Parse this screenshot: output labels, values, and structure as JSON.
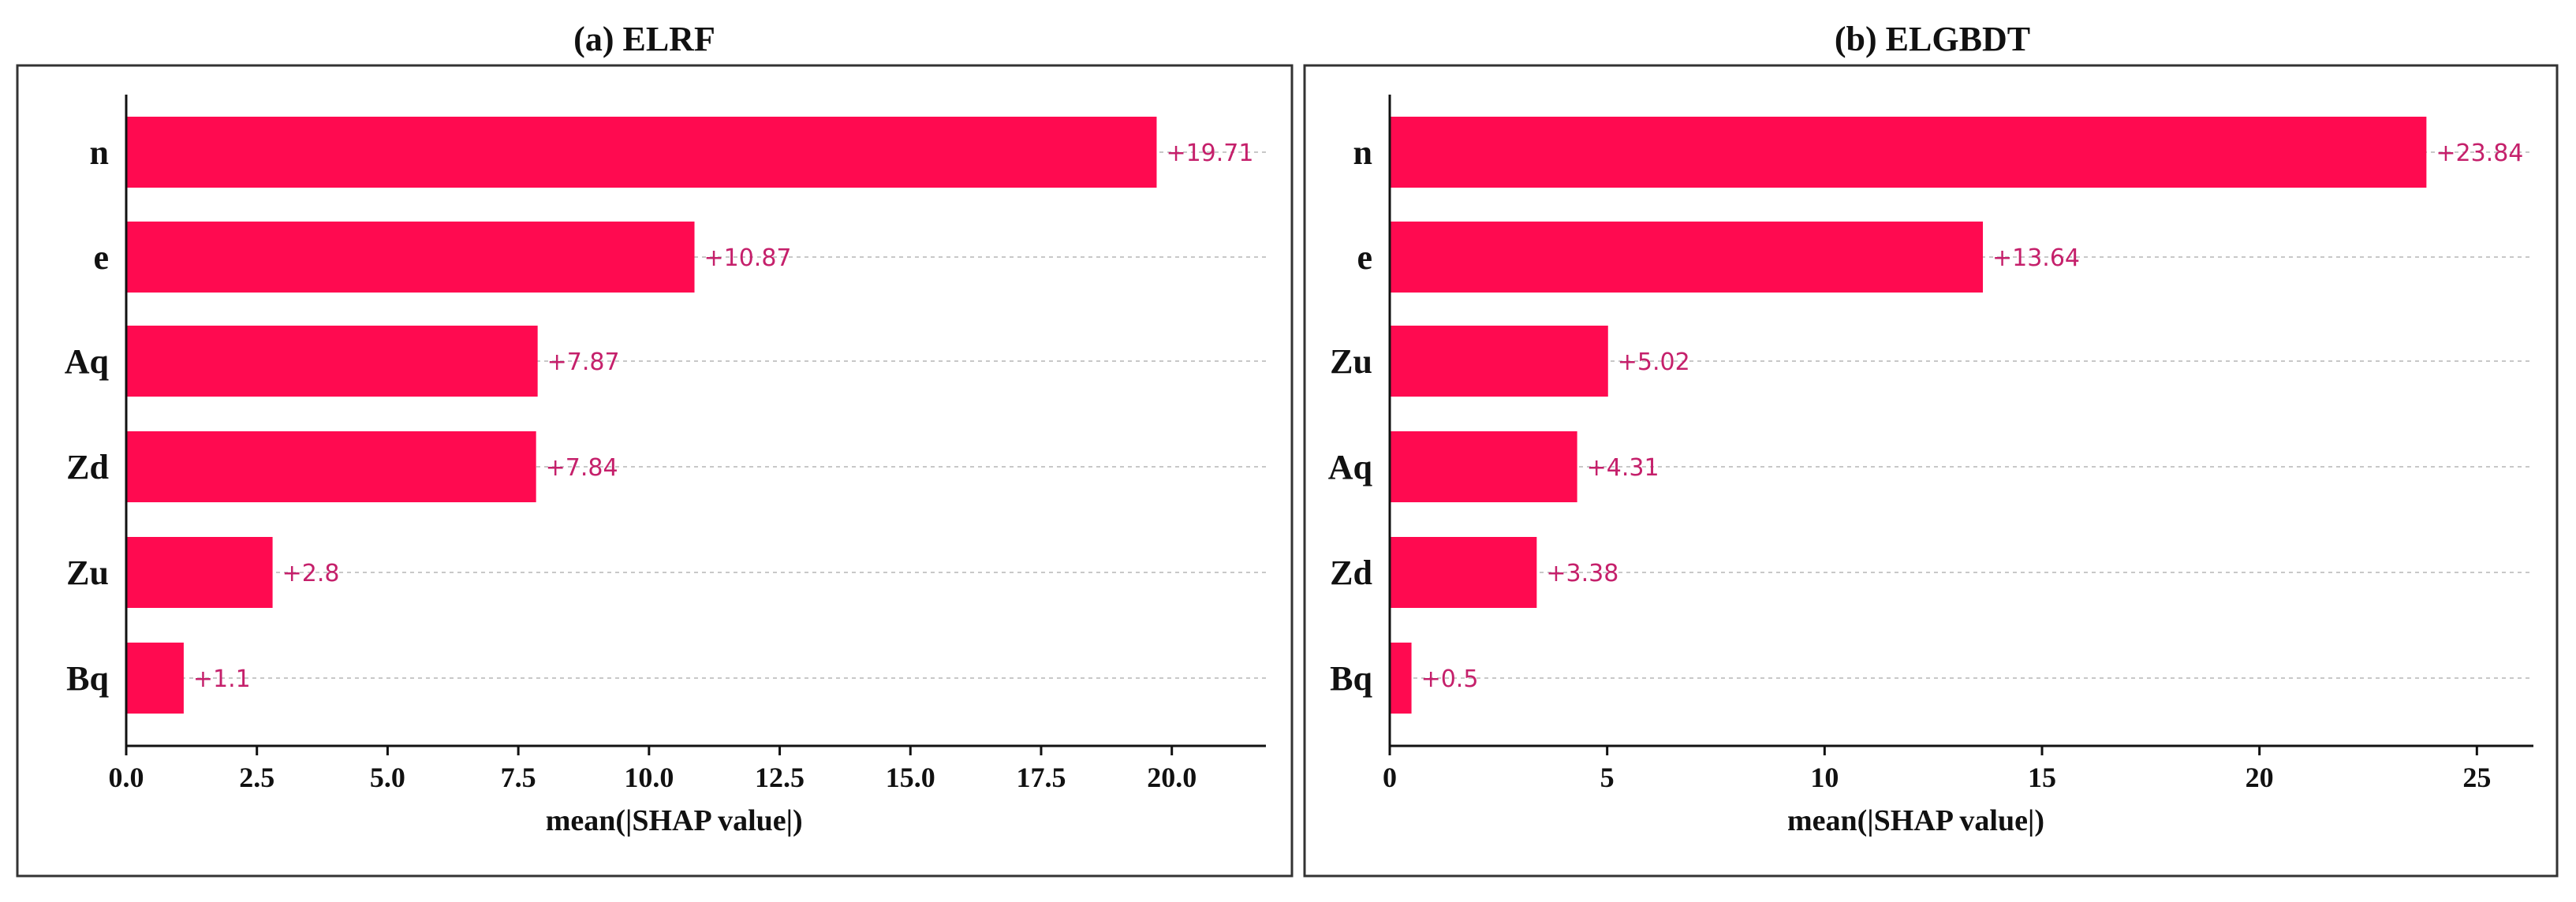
{
  "colors": {
    "bar": "#ff0a50",
    "value_label": "#c5206b"
  },
  "chart_data": [
    {
      "type": "bar",
      "orientation": "horizontal",
      "title": "(a) ELRF",
      "xlabel": "mean(|SHAP value|)",
      "ylabel": "",
      "categories": [
        "n",
        "e",
        "Aq",
        "Zd",
        "Zu",
        "Bq"
      ],
      "values": [
        19.71,
        10.87,
        7.87,
        7.84,
        2.8,
        1.1
      ],
      "value_labels": [
        "+19.71",
        "+10.87",
        "+7.87",
        "+7.84",
        "+2.8",
        "+1.1"
      ],
      "xlim": [
        0,
        21.8
      ],
      "xticks": [
        0,
        2.5,
        5,
        7.5,
        10,
        12.5,
        15,
        17.5,
        20
      ],
      "xtick_labels": [
        "0.0",
        "2.5",
        "5.0",
        "7.5",
        "10.0",
        "12.5",
        "15.0",
        "17.5",
        "20.0"
      ],
      "grid": "horizontal dashed"
    },
    {
      "type": "bar",
      "orientation": "horizontal",
      "title": "(b) ELGBDT",
      "xlabel": "mean(|SHAP value|)",
      "ylabel": "",
      "categories": [
        "n",
        "e",
        "Zu",
        "Aq",
        "Zd",
        "Bq"
      ],
      "values": [
        23.84,
        13.64,
        5.02,
        4.31,
        3.38,
        0.5
      ],
      "value_labels": [
        "+23.84",
        "+13.64",
        "+5.02",
        "+4.31",
        "+3.38",
        "+0.5"
      ],
      "xlim": [
        0,
        26.3
      ],
      "xticks": [
        0,
        5,
        10,
        15,
        20,
        25
      ],
      "xtick_labels": [
        "0",
        "5",
        "10",
        "15",
        "20",
        "25"
      ],
      "grid": "horizontal dashed"
    }
  ]
}
